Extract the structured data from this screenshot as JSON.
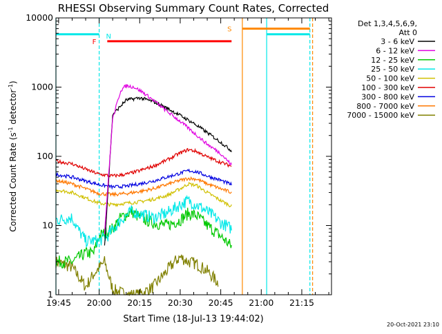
{
  "chart_data": {
    "type": "line",
    "title": "RHESSI Observing Summary Count Rates, Corrected",
    "xlabel": "Start Time (18-Jul-13 19:44:02)",
    "ylabel_main": "Corrected Count Rate (s",
    "ylabel_mid": " detector",
    "ylabel_end": ")",
    "ylabel_exp": "-1",
    "yscale": "log",
    "ylim": [
      1,
      10000
    ],
    "xlim": [
      "19:44",
      "21:26"
    ],
    "y_ticks": [
      "1",
      "10",
      "100",
      "1000",
      "10000"
    ],
    "x_ticks": [
      "19:45",
      "20:00",
      "20:15",
      "20:30",
      "20:45",
      "21:00",
      "21:15"
    ],
    "timestamp": "20-Oct-2021 23:10",
    "legend_header": [
      "Det 1,3,4,5,6,9,",
      "Att 0"
    ],
    "series": [
      {
        "name": "3 - 6 keV",
        "color": "#000000",
        "x": [
          "20:02",
          "20:05",
          "20:10",
          "20:15",
          "20:20",
          "20:25",
          "20:30",
          "20:35",
          "20:40",
          "20:45",
          "20:49"
        ],
        "values": [
          5,
          400,
          650,
          700,
          620,
          500,
          390,
          300,
          220,
          160,
          120
        ]
      },
      {
        "name": "6 - 12 keV",
        "color": "#e000e0",
        "x": [
          "20:02",
          "20:05",
          "20:08",
          "20:10",
          "20:13",
          "20:16",
          "20:20",
          "20:25",
          "20:30",
          "20:35",
          "20:40",
          "20:45",
          "20:49"
        ],
        "values": [
          8,
          350,
          900,
          1050,
          1000,
          850,
          650,
          450,
          320,
          220,
          150,
          110,
          75
        ]
      },
      {
        "name": "12 - 25 keV",
        "color": "#00c800",
        "x": [
          "19:44",
          "19:50",
          "19:55",
          "19:58",
          "20:00",
          "20:05",
          "20:08",
          "20:12",
          "20:15",
          "20:20",
          "20:25",
          "20:30",
          "20:33",
          "20:36",
          "20:40",
          "20:45",
          "20:49"
        ],
        "values": [
          3,
          3,
          4,
          4,
          7,
          9,
          13,
          16,
          13,
          11,
          10,
          12,
          15,
          14,
          10,
          7,
          5
        ]
      },
      {
        "name": "25 - 50 keV",
        "color": "#00e8e8",
        "x": [
          "19:44",
          "19:50",
          "19:52",
          "19:55",
          "20:00",
          "20:03",
          "20:08",
          "20:12",
          "20:20",
          "20:25",
          "20:30",
          "20:33",
          "20:38",
          "20:42",
          "20:45",
          "20:49"
        ],
        "values": [
          12,
          13,
          9,
          6,
          6,
          7,
          12,
          16,
          13,
          15,
          20,
          23,
          18,
          14,
          11,
          9
        ]
      },
      {
        "name": "50 - 100 keV",
        "color": "#d0c000",
        "x": [
          "19:44",
          "19:50",
          "19:55",
          "20:00",
          "20:05",
          "20:10",
          "20:15",
          "20:20",
          "20:25",
          "20:30",
          "20:33",
          "20:36",
          "20:40",
          "20:45",
          "20:49"
        ],
        "values": [
          33,
          30,
          25,
          21,
          20,
          21,
          22,
          24,
          27,
          34,
          40,
          38,
          30,
          23,
          19
        ]
      },
      {
        "name": "100 - 300 keV",
        "color": "#e00000",
        "x": [
          "19:44",
          "19:50",
          "19:55",
          "20:00",
          "20:05",
          "20:10",
          "20:15",
          "20:20",
          "20:25",
          "20:30",
          "20:33",
          "20:36",
          "20:40",
          "20:45",
          "20:49"
        ],
        "values": [
          85,
          78,
          65,
          55,
          52,
          55,
          62,
          72,
          88,
          112,
          125,
          118,
          98,
          82,
          72
        ]
      },
      {
        "name": "300 - 800 keV",
        "color": "#0000e0",
        "x": [
          "19:44",
          "19:50",
          "19:55",
          "20:00",
          "20:05",
          "20:10",
          "20:15",
          "20:20",
          "20:25",
          "20:30",
          "20:33",
          "20:36",
          "20:40",
          "20:45",
          "20:49"
        ],
        "values": [
          55,
          50,
          44,
          39,
          36,
          37,
          40,
          44,
          50,
          57,
          62,
          60,
          52,
          45,
          39
        ]
      },
      {
        "name": "800 - 7000 keV",
        "color": "#ff7800",
        "x": [
          "19:44",
          "19:50",
          "19:55",
          "20:00",
          "20:05",
          "20:10",
          "20:15",
          "20:20",
          "20:25",
          "20:30",
          "20:33",
          "20:36",
          "20:40",
          "20:45",
          "20:49"
        ],
        "values": [
          45,
          40,
          34,
          29,
          28,
          29,
          31,
          34,
          39,
          45,
          48,
          47,
          40,
          34,
          30
        ]
      },
      {
        "name": "7000 - 15000 keV",
        "color": "#808000",
        "x": [
          "19:44",
          "19:50",
          "19:55",
          "19:58",
          "20:02",
          "20:05",
          "20:10",
          "20:15",
          "20:20",
          "20:25",
          "20:28",
          "20:30",
          "20:33",
          "20:36",
          "20:40",
          "20:44"
        ],
        "values": [
          3,
          2.5,
          1.3,
          2,
          3,
          1.2,
          1,
          1,
          1.3,
          2.2,
          3,
          3.5,
          3,
          2.8,
          2.2,
          1.5
        ]
      }
    ],
    "flags": [
      {
        "label": "N",
        "color": "#00e8e8",
        "segments": [
          [
            "19:44",
            "20:00"
          ],
          [
            "21:02",
            "21:18"
          ]
        ],
        "level": 5800,
        "mark_label_at": "20:01"
      },
      {
        "label": "F",
        "color": "#ff0000",
        "segments": [
          [
            "20:03",
            "20:49"
          ]
        ],
        "level": 4600,
        "mark_label_at": "20:00"
      },
      {
        "label": "S",
        "color": "#ff8800",
        "segments": [
          [
            "20:53",
            "21:18"
          ]
        ],
        "level": 7000,
        "mark_label_at": "20:50"
      }
    ],
    "vlines": [
      {
        "x": "20:00",
        "color": "#00e8e8",
        "dash": true
      },
      {
        "x": "20:53",
        "color": "#ff8800",
        "dash": false
      },
      {
        "x": "21:02",
        "color": "#00e8e8",
        "dash": false
      },
      {
        "x": "21:18",
        "color": "#00e8e8",
        "dash": true
      },
      {
        "x": "21:19",
        "color": "#ff8800",
        "dash": true
      },
      {
        "x": "19:44",
        "color": "#00e8e8",
        "dash": false
      }
    ]
  }
}
